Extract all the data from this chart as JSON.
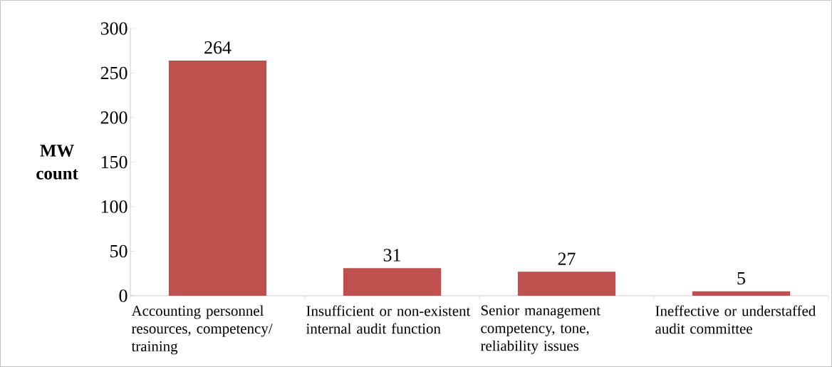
{
  "chart_data": {
    "type": "bar",
    "ylabel": "MW count",
    "categories": [
      "Accounting personnel resources, competency/ training",
      "Insufficient or non-existent internal audit function",
      "Senior management competency, tone, reliability issues",
      "Ineffective or understaffed audit committee"
    ],
    "values": [
      264,
      31,
      27,
      5
    ],
    "color": "#c0504d",
    "data_labels": true,
    "ylim": [
      0,
      300
    ],
    "yticks": [
      0,
      50,
      100,
      150,
      200,
      250,
      300
    ],
    "grid": false
  }
}
